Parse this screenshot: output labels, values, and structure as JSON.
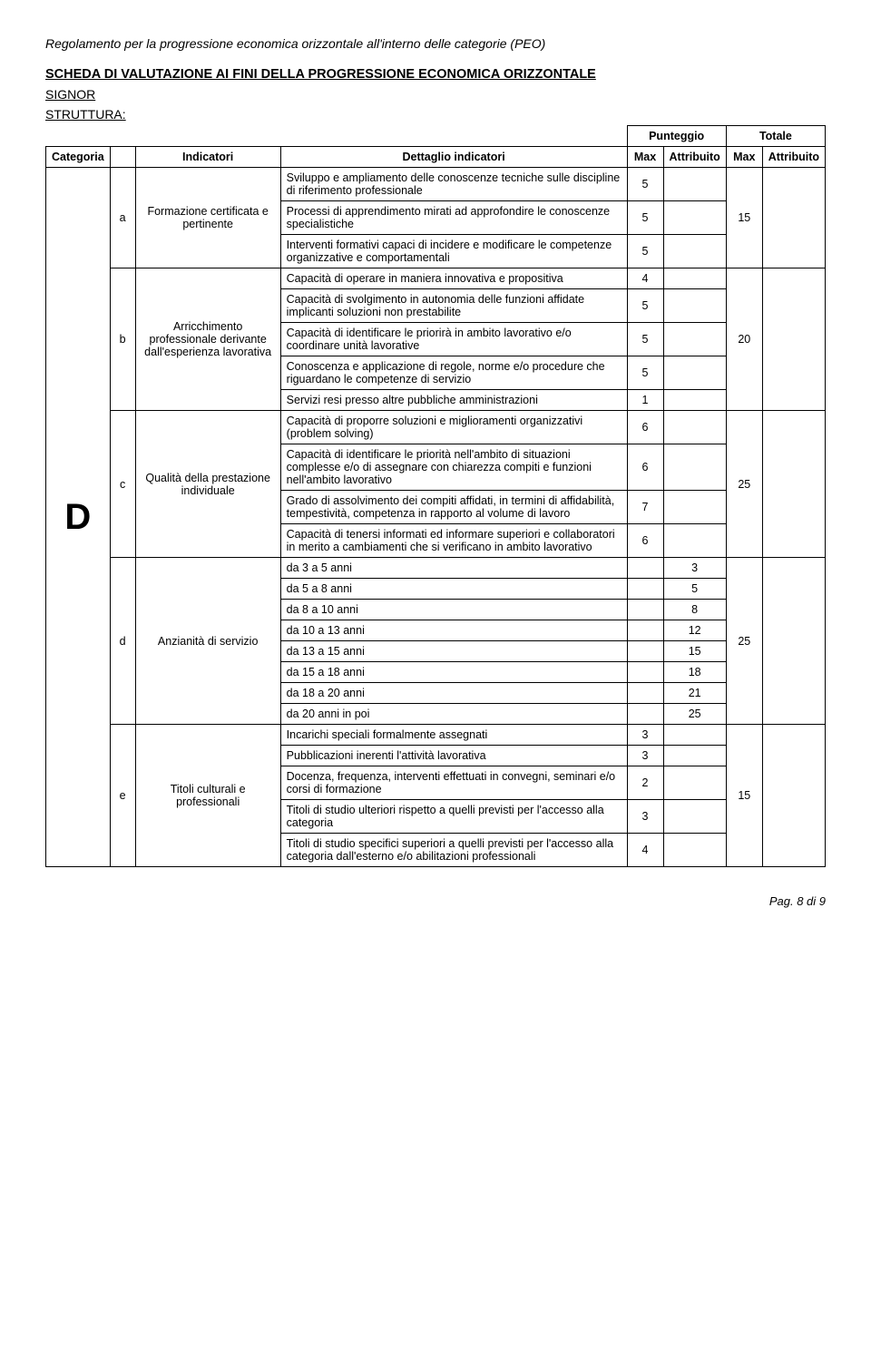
{
  "doc_title": "Regolamento per la progressione economica orizzontale all'interno delle categorie (PEO)",
  "section_heading": "SCHEDA DI VALUTAZIONE AI FINI DELLA PROGRESSIONE ECONOMICA ORIZZONTALE",
  "signor": "SIGNOR",
  "struttura": "STRUTTURA:",
  "header": {
    "punteggio": "Punteggio",
    "totale": "Totale",
    "categoria": "Categoria",
    "indicatori": "Indicatori",
    "dettaglio": "Dettaglio indicatori",
    "max": "Max",
    "attribuito": "Attribuito"
  },
  "category_letter": "D",
  "rows": {
    "a": {
      "letter": "a",
      "indicator": "Formazione certificata e pertinente",
      "sect_max": "15",
      "details": [
        {
          "text": "Sviluppo e ampliamento delle conoscenze tecniche sulle discipline di riferimento professionale",
          "max": "5"
        },
        {
          "text": "Processi di apprendimento mirati ad approfondire le conoscenze specialistiche",
          "max": "5"
        },
        {
          "text": "Interventi formativi capaci di incidere e modificare le competenze organizzative e comportamentali",
          "max": "5"
        }
      ]
    },
    "b": {
      "letter": "b",
      "indicator": "Arricchimento professionale derivante dall'esperienza lavorativa",
      "sect_max": "20",
      "details": [
        {
          "text": "Capacità di operare in maniera innovativa e propositiva",
          "max": "4"
        },
        {
          "text": "Capacità di svolgimento in autonomia delle funzioni affidate implicanti soluzioni non prestabilite",
          "max": "5"
        },
        {
          "text": "Capacità di identificare le priorirà in ambito lavorativo e/o coordinare unità lavorative",
          "max": "5"
        },
        {
          "text": "Conoscenza e applicazione di regole, norme e/o procedure che riguardano le competenze di servizio",
          "max": "5"
        },
        {
          "text": "Servizi resi presso altre pubbliche amministrazioni",
          "max": "1"
        }
      ]
    },
    "c": {
      "letter": "c",
      "indicator": "Qualità della prestazione individuale",
      "sect_max": "25",
      "details": [
        {
          "text": "Capacità di proporre soluzioni e miglioramenti organizzativi (problem solving)",
          "max": "6"
        },
        {
          "text": "Capacità di identificare le priorità nell'ambito di situazioni complesse e/o di assegnare con chiarezza compiti e funzioni nell'ambito lavorativo",
          "max": "6"
        },
        {
          "text": "Grado di assolvimento dei compiti affidati, in termini di affidabilità, tempestività, competenza in rapporto al volume di lavoro",
          "max": "7"
        },
        {
          "text": "Capacità di tenersi informati ed informare superiori e collaboratori in merito a cambiamenti che si verificano in ambito lavorativo",
          "max": "6"
        }
      ]
    },
    "d": {
      "letter": "d",
      "indicator": "Anzianità di servizio",
      "sect_max": "25",
      "details": [
        {
          "text": "da 3 a 5 anni",
          "attr": "3"
        },
        {
          "text": "da 5 a 8 anni",
          "attr": "5"
        },
        {
          "text": "da 8 a 10 anni",
          "attr": "8"
        },
        {
          "text": "da 10 a 13 anni",
          "attr": "12"
        },
        {
          "text": "da 13 a 15 anni",
          "attr": "15"
        },
        {
          "text": "da 15 a 18 anni",
          "attr": "18"
        },
        {
          "text": "da 18 a 20 anni",
          "attr": "21"
        },
        {
          "text": "da 20 anni in poi",
          "attr": "25"
        }
      ]
    },
    "e": {
      "letter": "e",
      "indicator": "Titoli culturali e professionali",
      "sect_max": "15",
      "details": [
        {
          "text": "Incarichi speciali formalmente assegnati",
          "max": "3"
        },
        {
          "text": "Pubblicazioni inerenti l'attività lavorativa",
          "max": "3"
        },
        {
          "text": "Docenza, frequenza, interventi effettuati in convegni, seminari e/o corsi di formazione",
          "max": "2"
        },
        {
          "text": "Titoli di studio ulteriori rispetto a quelli previsti per l'accesso alla categoria",
          "max": "3"
        },
        {
          "text": "Titoli di studio specifici superiori a quelli previsti per l'accesso alla categoria dall'esterno e/o abilitazioni professionali",
          "max": "4"
        }
      ]
    }
  },
  "footer": "Pag. 8 di 9"
}
